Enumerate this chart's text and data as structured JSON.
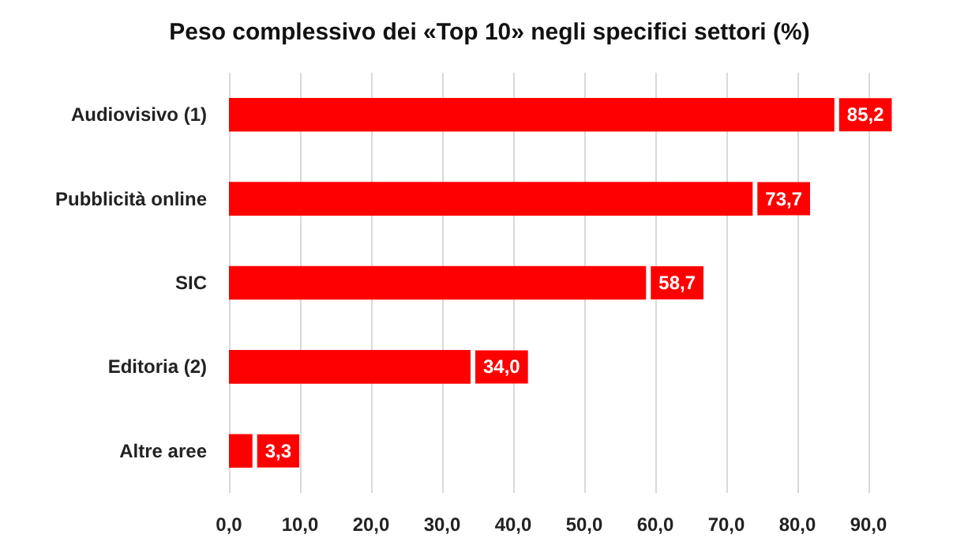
{
  "chart_data": {
    "type": "bar",
    "orientation": "horizontal",
    "title": "Peso complessivo dei «Top 10» negli specifici settori (%)",
    "categories": [
      "Audiovisivo (1)",
      "Pubblicità online",
      "SIC",
      "Editoria (2)",
      "Altre aree"
    ],
    "values": [
      85.2,
      73.7,
      58.7,
      34.0,
      3.3
    ],
    "value_labels": [
      "85,2",
      "73,7",
      "58,7",
      "34,0",
      "3,3"
    ],
    "color": "#ff0000",
    "xlim": [
      0,
      90
    ],
    "xticks": [
      {
        "value": 0,
        "label": "0,0"
      },
      {
        "value": 10,
        "label": "10,0"
      },
      {
        "value": 20,
        "label": "20,0"
      },
      {
        "value": 30,
        "label": "30,0"
      },
      {
        "value": 40,
        "label": "40,0"
      },
      {
        "value": 50,
        "label": "50,0"
      },
      {
        "value": 60,
        "label": "60,0"
      },
      {
        "value": 70,
        "label": "70,0"
      },
      {
        "value": 80,
        "label": "80,0"
      },
      {
        "value": 90,
        "label": "90,0"
      }
    ],
    "grid": "x"
  }
}
